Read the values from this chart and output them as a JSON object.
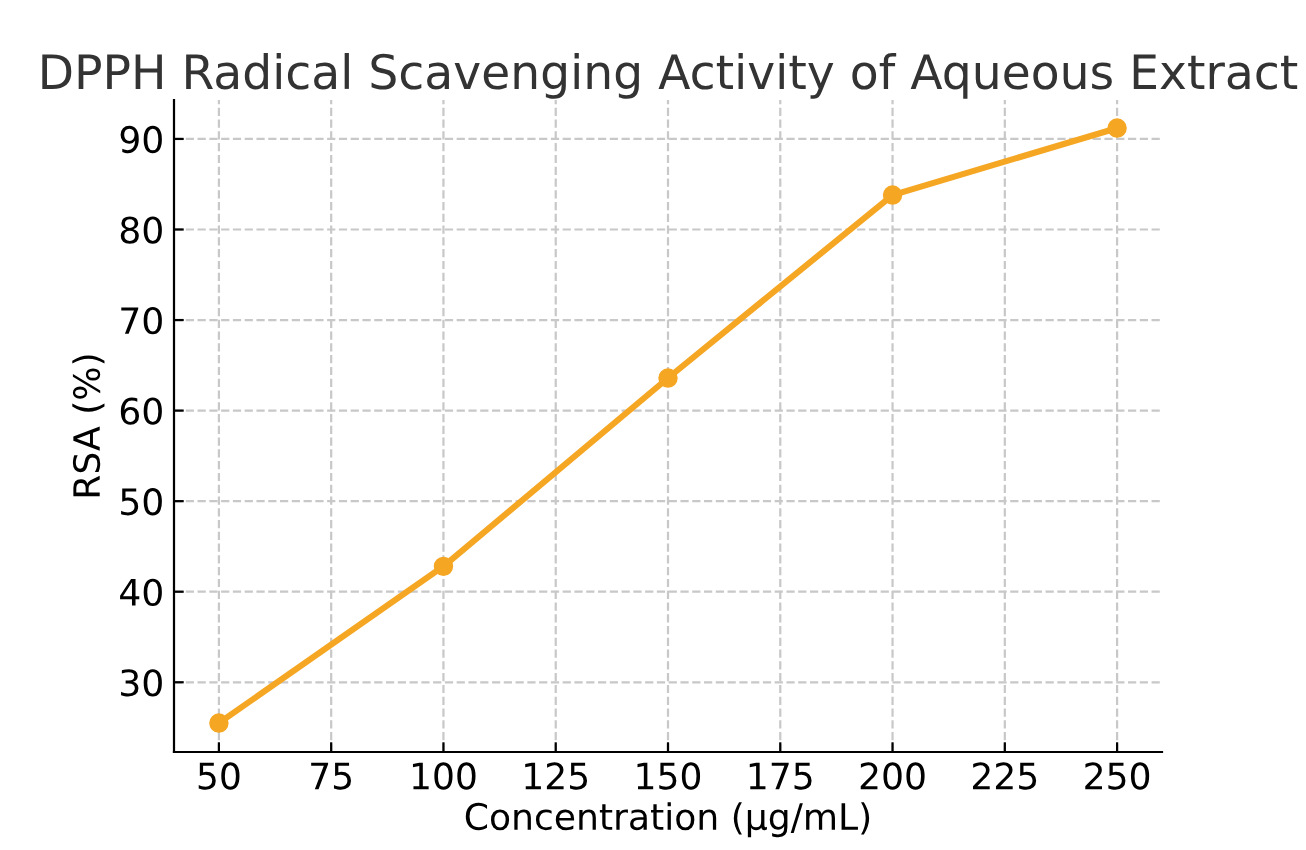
{
  "chart_data": {
    "type": "line",
    "title": "DPPH Radical Scavenging Activity of Aqueous Extract",
    "xlabel": "Concentration (µg/mL)",
    "ylabel": "RSA (%)",
    "x": [
      50,
      100,
      150,
      200,
      250
    ],
    "series": [
      {
        "color": "#f5a623",
        "values": [
          25.5,
          42.8,
          63.6,
          83.8,
          91.2
        ]
      }
    ],
    "xlim": [
      40,
      260
    ],
    "ylim": [
      22.3,
      94.3
    ],
    "xticks": [
      50,
      75,
      100,
      125,
      150,
      175,
      200,
      225,
      250
    ],
    "yticks": [
      30,
      40,
      50,
      60,
      70,
      80,
      90
    ],
    "grid": true,
    "marker": "circle",
    "line_style": "solid"
  }
}
